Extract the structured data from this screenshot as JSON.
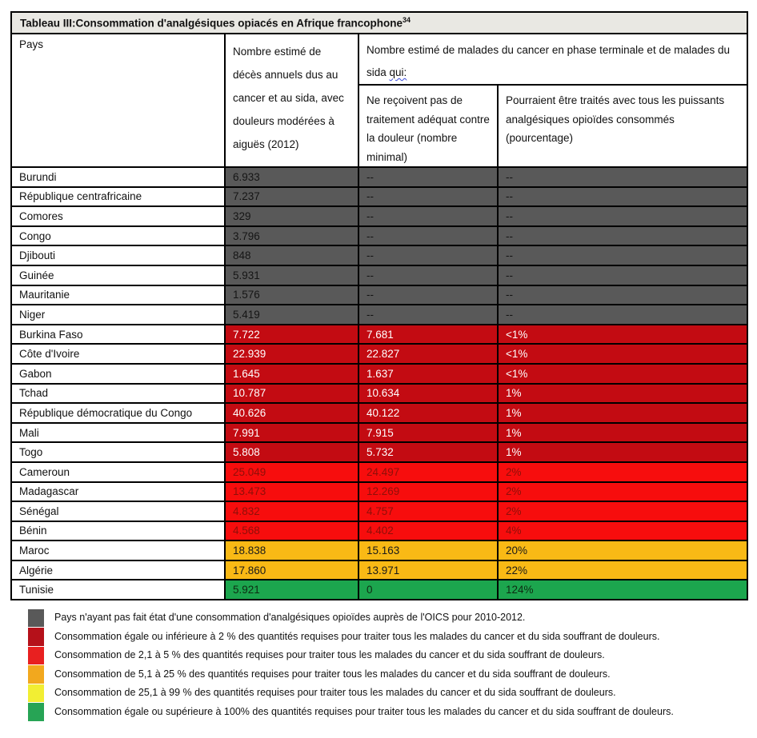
{
  "title": {
    "text": "Tableau III:Consommation d'analgésiques opiacés en Afrique francophone",
    "footnote_marker": "34"
  },
  "header": {
    "col_pays": "Pays",
    "col_deces": "Nombre estimé de décès annuels dus au cancer et au sida, avec douleurs modérées à aiguës (2012)",
    "group_main": "Nombre estimé de malades du cancer en phase terminale et de malades du sida",
    "group_qui": "qui:",
    "col_non_traites": "Ne reçoivent pas de traitement adéquat contre la douleur (nombre minimal)",
    "col_pourcentage": "Pourraient être traités avec tous les puissants analgésiques opioïdes consommés (pourcentage)"
  },
  "categories": {
    "gray": {
      "bg": "#595959",
      "text": "#151515"
    },
    "darkred": {
      "bg": "#c30b12",
      "text": "#ffffff"
    },
    "red": {
      "bg": "#f70d0d",
      "text": "#8f0f09"
    },
    "orange": {
      "bg": "#f9b915",
      "text": "#1a1a1a"
    },
    "green": {
      "bg": "#1ca64e",
      "text": "#0e2b12"
    }
  },
  "table": {
    "rows": [
      {
        "pays": "Burundi",
        "deces": "6.933",
        "non_traites": "--",
        "pourcentage": "--",
        "category": "gray"
      },
      {
        "pays": "République centrafricaine",
        "deces": "7.237",
        "non_traites": "--",
        "pourcentage": "--",
        "category": "gray"
      },
      {
        "pays": "Comores",
        "deces": "329",
        "non_traites": "--",
        "pourcentage": "--",
        "category": "gray"
      },
      {
        "pays": "Congo",
        "deces": "3.796",
        "non_traites": "--",
        "pourcentage": "--",
        "category": "gray"
      },
      {
        "pays": "Djibouti",
        "deces": "848",
        "non_traites": "--",
        "pourcentage": "--",
        "category": "gray"
      },
      {
        "pays": "Guinée",
        "deces": "5.931",
        "non_traites": "--",
        "pourcentage": "--",
        "category": "gray"
      },
      {
        "pays": "Mauritanie",
        "deces": "1.576",
        "non_traites": "--",
        "pourcentage": "--",
        "category": "gray"
      },
      {
        "pays": "Niger",
        "deces": "5.419",
        "non_traites": "--",
        "pourcentage": "--",
        "category": "gray"
      },
      {
        "pays": "Burkina Faso",
        "deces": "7.722",
        "non_traites": "7.681",
        "pourcentage": "<1%",
        "category": "darkred"
      },
      {
        "pays": "Côte d'Ivoire",
        "deces": "22.939",
        "non_traites": "22.827",
        "pourcentage": "<1%",
        "category": "darkred"
      },
      {
        "pays": "Gabon",
        "deces": "1.645",
        "non_traites": "1.637",
        "pourcentage": "<1%",
        "category": "darkred"
      },
      {
        "pays": "Tchad",
        "deces": "10.787",
        "non_traites": "10.634",
        "pourcentage": "1%",
        "category": "darkred"
      },
      {
        "pays": "République démocratique du Congo",
        "deces": "40.626",
        "non_traites": "40.122",
        "pourcentage": "1%",
        "category": "darkred"
      },
      {
        "pays": "Mali",
        "deces": "7.991",
        "non_traites": "7.915",
        "pourcentage": "1%",
        "category": "darkred"
      },
      {
        "pays": "Togo",
        "deces": "5.808",
        "non_traites": "5.732",
        "pourcentage": "1%",
        "category": "darkred"
      },
      {
        "pays": "Cameroun",
        "deces": "25.049",
        "non_traites": "24.497",
        "pourcentage": "2%",
        "category": "red"
      },
      {
        "pays": "Madagascar",
        "deces": "13.473",
        "non_traites": "12.269",
        "pourcentage": "2%",
        "category": "red"
      },
      {
        "pays": "Sénégal",
        "deces": "4.832",
        "non_traites": "4.757",
        "pourcentage": "2%",
        "category": "red"
      },
      {
        "pays": "Bénin",
        "deces": "4.568",
        "non_traites": "4.402",
        "pourcentage": "4%",
        "category": "red"
      },
      {
        "pays": "Maroc",
        "deces": "18.838",
        "non_traites": "15.163",
        "pourcentage": "20%",
        "category": "orange"
      },
      {
        "pays": "Algérie",
        "deces": "17.860",
        "non_traites": "13.971",
        "pourcentage": "22%",
        "category": "orange"
      },
      {
        "pays": "Tunisie",
        "deces": "5.921",
        "non_traites": "0",
        "pourcentage": "124%",
        "category": "green"
      }
    ]
  },
  "legend": [
    {
      "swatch": "#595959",
      "label": "Pays n'ayant pas fait état d'une consommation d'analgésiques opioïdes auprès de l'OICS pour 2010-2012."
    },
    {
      "swatch": "#b5111a",
      "label": "Consommation égale ou inférieure à 2 % des quantités requises pour traiter tous les malades du cancer et du sida souffrant de douleurs."
    },
    {
      "swatch": "#e82020",
      "label": "Consommation de 2,1 à 5 % des quantités requises pour traiter tous les malades du cancer et du sida souffrant de douleurs."
    },
    {
      "swatch": "#f2a81e",
      "label": "Consommation de 5,1 à 25 % des quantités requises pour traiter tous les malades du cancer et du sida souffrant de douleurs."
    },
    {
      "swatch": "#f2ee33",
      "label": "Consommation de 25,1 à 99 % des quantités requises pour traiter tous les malades du cancer et du sida souffrant de douleurs."
    },
    {
      "swatch": "#27a455",
      "label": "Consommation égale ou supérieure à 100% des quantités requises pour traiter tous les malades du cancer et du sida souffrant de douleurs."
    }
  ]
}
